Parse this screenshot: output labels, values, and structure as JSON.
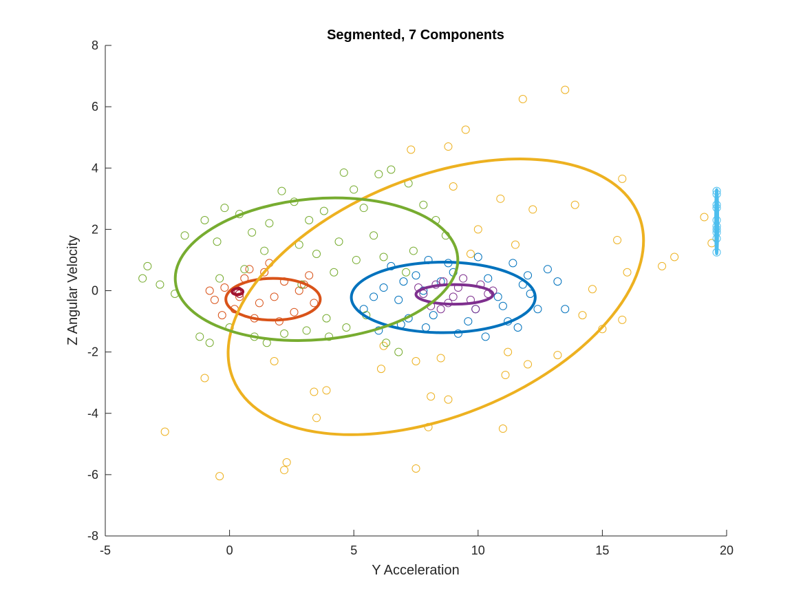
{
  "chart_data": {
    "type": "scatter",
    "title": "Segmented, 7 Components",
    "xlabel": "Y Acceleration",
    "ylabel": "Z Angular Velocity",
    "xlim": [
      -5,
      20
    ],
    "ylim": [
      -8,
      8
    ],
    "xticks": [
      "-5",
      "0",
      "5",
      "10",
      "15",
      "20"
    ],
    "yticks": [
      "-8",
      "-6",
      "-4",
      "-2",
      "0",
      "2",
      "4",
      "6",
      "8"
    ],
    "grid": false,
    "colors": {
      "blue": "#0072BD",
      "orange": "#D95319",
      "yellow": "#EDB120",
      "purple": "#7E2F8E",
      "green": "#77AC30",
      "lightblue": "#4DBEEE",
      "darkred": "#A2142F"
    },
    "series": [
      {
        "color": "blue",
        "points": [
          [
            6.2,
            0.1
          ],
          [
            6.8,
            -0.3
          ],
          [
            7.5,
            0.5
          ],
          [
            8.2,
            -0.8
          ],
          [
            9.0,
            0.6
          ],
          [
            9.6,
            -1.0
          ],
          [
            10.4,
            0.4
          ],
          [
            11.0,
            -0.5
          ],
          [
            11.8,
            0.2
          ],
          [
            12.4,
            -0.6
          ],
          [
            13.2,
            0.3
          ],
          [
            13.5,
            -0.6
          ],
          [
            12.8,
            0.7
          ],
          [
            11.4,
            0.9
          ],
          [
            10.0,
            1.1
          ],
          [
            8.8,
            0.9
          ],
          [
            7.9,
            -1.2
          ],
          [
            6.9,
            -1.1
          ],
          [
            5.8,
            -0.2
          ],
          [
            5.4,
            -0.6
          ],
          [
            6.5,
            0.8
          ],
          [
            7.2,
            -0.9
          ],
          [
            9.2,
            -1.4
          ],
          [
            10.3,
            -1.5
          ],
          [
            11.6,
            -1.2
          ],
          [
            12.1,
            -0.1
          ],
          [
            7.8,
            0.0
          ],
          [
            8.5,
            0.3
          ],
          [
            10.8,
            -0.2
          ],
          [
            9.9,
            -0.6
          ],
          [
            7.0,
            0.3
          ],
          [
            12.0,
            0.5
          ],
          [
            6.0,
            -1.3
          ],
          [
            11.2,
            -1.0
          ],
          [
            8.0,
            1.0
          ]
        ],
        "ellipse": {
          "cx": 8.6,
          "cy": -0.22,
          "rx": 3.7,
          "ry": 1.15,
          "angle": 0
        }
      },
      {
        "color": "orange",
        "points": [
          [
            -0.6,
            -0.3
          ],
          [
            -0.2,
            0.1
          ],
          [
            0.2,
            -0.6
          ],
          [
            0.6,
            0.4
          ],
          [
            1.0,
            -0.9
          ],
          [
            1.4,
            0.6
          ],
          [
            1.8,
            -0.2
          ],
          [
            2.2,
            0.3
          ],
          [
            2.6,
            -0.7
          ],
          [
            3.0,
            0.2
          ],
          [
            3.4,
            -0.4
          ],
          [
            -0.3,
            -0.8
          ],
          [
            0.8,
            0.7
          ],
          [
            2.0,
            -1.0
          ],
          [
            3.2,
            0.5
          ],
          [
            1.2,
            -0.4
          ],
          [
            0.4,
            -0.2
          ],
          [
            2.8,
            0.0
          ],
          [
            -0.8,
            0.0
          ],
          [
            1.6,
            0.9
          ]
        ],
        "ellipse": {
          "cx": 1.75,
          "cy": -0.28,
          "rx": 1.9,
          "ry": 0.68,
          "angle": 0
        }
      },
      {
        "color": "yellow",
        "points": [
          [
            13.5,
            6.55
          ],
          [
            11.8,
            6.25
          ],
          [
            9.5,
            5.25
          ],
          [
            7.3,
            4.6
          ],
          [
            8.8,
            4.7
          ],
          [
            9.0,
            3.4
          ],
          [
            15.8,
            3.65
          ],
          [
            19.1,
            2.4
          ],
          [
            19.4,
            1.55
          ],
          [
            17.9,
            1.1
          ],
          [
            17.4,
            0.8
          ],
          [
            16.0,
            0.6
          ],
          [
            15.6,
            1.65
          ],
          [
            14.6,
            0.05
          ],
          [
            13.9,
            2.8
          ],
          [
            12.2,
            2.65
          ],
          [
            10.9,
            3.0
          ],
          [
            14.2,
            -0.8
          ],
          [
            15.8,
            -0.95
          ],
          [
            15.0,
            -1.25
          ],
          [
            12.0,
            -2.4
          ],
          [
            11.1,
            -2.75
          ],
          [
            11.2,
            -2.0
          ],
          [
            13.2,
            -2.1
          ],
          [
            11.0,
            -4.5
          ],
          [
            8.1,
            -3.45
          ],
          [
            8.8,
            -3.55
          ],
          [
            8.0,
            -4.45
          ],
          [
            7.5,
            -5.8
          ],
          [
            3.5,
            -4.15
          ],
          [
            2.3,
            -5.6
          ],
          [
            2.2,
            -5.85
          ],
          [
            -0.4,
            -6.05
          ],
          [
            -2.6,
            -4.6
          ],
          [
            -1.0,
            -2.85
          ],
          [
            3.4,
            -3.3
          ],
          [
            3.9,
            -3.25
          ],
          [
            1.8,
            -2.3
          ],
          [
            6.1,
            -2.55
          ],
          [
            7.5,
            -2.3
          ],
          [
            8.5,
            -2.2
          ],
          [
            9.7,
            1.2
          ],
          [
            10.0,
            2.0
          ],
          [
            11.5,
            1.5
          ],
          [
            6.2,
            -1.8
          ]
        ],
        "ellipse": {
          "cx": 8.3,
          "cy": -0.2,
          "rx": 8.8,
          "ry": 3.9,
          "angle": 22
        }
      },
      {
        "color": "purple",
        "points": [
          [
            7.8,
            -0.1
          ],
          [
            8.3,
            0.2
          ],
          [
            8.8,
            -0.4
          ],
          [
            9.2,
            0.1
          ],
          [
            9.7,
            -0.3
          ],
          [
            10.1,
            0.2
          ],
          [
            8.5,
            -0.6
          ],
          [
            9.4,
            0.4
          ],
          [
            10.4,
            -0.1
          ],
          [
            7.6,
            0.1
          ],
          [
            9.0,
            -0.2
          ],
          [
            8.1,
            -0.5
          ],
          [
            9.9,
            -0.6
          ],
          [
            10.6,
            0.0
          ],
          [
            8.6,
            0.3
          ]
        ],
        "ellipse": {
          "cx": 9.05,
          "cy": -0.12,
          "rx": 1.55,
          "ry": 0.32,
          "angle": 0
        }
      },
      {
        "color": "green",
        "points": [
          [
            -3.5,
            0.4
          ],
          [
            -3.3,
            0.8
          ],
          [
            -2.8,
            0.2
          ],
          [
            -2.2,
            -0.1
          ],
          [
            -1.8,
            1.8
          ],
          [
            -1.0,
            2.3
          ],
          [
            -0.5,
            1.6
          ],
          [
            -0.2,
            2.7
          ],
          [
            0.4,
            2.5
          ],
          [
            0.9,
            1.9
          ],
          [
            1.6,
            2.2
          ],
          [
            2.1,
            3.25
          ],
          [
            2.6,
            2.9
          ],
          [
            3.2,
            2.3
          ],
          [
            3.8,
            2.6
          ],
          [
            4.6,
            3.85
          ],
          [
            5.0,
            3.3
          ],
          [
            5.4,
            2.7
          ],
          [
            6.0,
            3.8
          ],
          [
            6.5,
            3.95
          ],
          [
            7.2,
            3.5
          ],
          [
            7.8,
            2.8
          ],
          [
            8.3,
            2.3
          ],
          [
            8.7,
            1.8
          ],
          [
            7.4,
            1.3
          ],
          [
            6.2,
            1.1
          ],
          [
            5.1,
            1.0
          ],
          [
            4.2,
            0.6
          ],
          [
            3.5,
            1.2
          ],
          [
            2.8,
            1.5
          ],
          [
            1.4,
            1.3
          ],
          [
            0.6,
            0.7
          ],
          [
            -0.8,
            -1.7
          ],
          [
            -1.2,
            -1.5
          ],
          [
            0.0,
            -1.2
          ],
          [
            1.5,
            -1.7
          ],
          [
            2.2,
            -1.4
          ],
          [
            3.1,
            -1.3
          ],
          [
            4.0,
            -1.5
          ],
          [
            4.7,
            -1.2
          ],
          [
            5.5,
            -0.8
          ],
          [
            6.3,
            -1.7
          ],
          [
            6.8,
            -2.0
          ],
          [
            7.1,
            0.6
          ],
          [
            3.9,
            -0.9
          ],
          [
            -0.4,
            0.4
          ],
          [
            2.9,
            0.2
          ],
          [
            4.4,
            1.6
          ],
          [
            5.8,
            1.8
          ],
          [
            1.0,
            -1.5
          ]
        ],
        "ellipse": {
          "cx": 3.5,
          "cy": 0.7,
          "rx": 5.7,
          "ry": 2.3,
          "angle": 5
        }
      },
      {
        "color": "lightblue",
        "points": [
          [
            19.6,
            3.25
          ],
          [
            19.6,
            3.15
          ],
          [
            19.6,
            2.8
          ],
          [
            19.6,
            2.7
          ],
          [
            19.6,
            2.3
          ],
          [
            19.6,
            2.1
          ],
          [
            19.6,
            2.0
          ],
          [
            19.6,
            1.9
          ],
          [
            19.6,
            1.7
          ],
          [
            19.6,
            1.25
          ]
        ],
        "ellipse": {
          "cx": 19.6,
          "cy": 2.25,
          "rx": 0.03,
          "ry": 1.05,
          "angle": 0
        }
      },
      {
        "color": "darkred",
        "points": [
          [
            0.3,
            -0.05
          ],
          [
            0.35,
            0.0
          ],
          [
            0.4,
            -0.1
          ]
        ],
        "ellipse": {
          "cx": 0.32,
          "cy": -0.03,
          "rx": 0.22,
          "ry": 0.1,
          "angle": 0
        }
      }
    ]
  }
}
